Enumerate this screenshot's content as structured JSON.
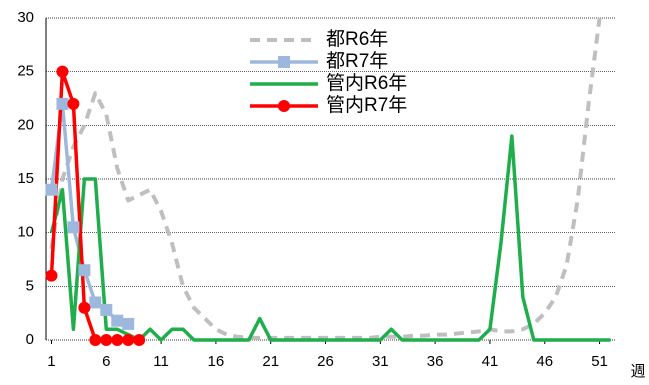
{
  "chart_data": {
    "type": "line",
    "x_label": "週",
    "x": [
      1,
      2,
      3,
      4,
      5,
      6,
      7,
      8,
      9,
      10,
      11,
      12,
      13,
      14,
      15,
      16,
      17,
      18,
      19,
      20,
      21,
      22,
      23,
      24,
      25,
      26,
      27,
      28,
      29,
      30,
      31,
      32,
      33,
      34,
      35,
      36,
      37,
      38,
      39,
      40,
      41,
      42,
      43,
      44,
      45,
      46,
      47,
      48,
      49,
      50,
      51,
      52
    ],
    "xlim": [
      0.5,
      52.5
    ],
    "xticks": [
      1,
      6,
      11,
      16,
      21,
      26,
      31,
      36,
      41,
      46,
      51
    ],
    "ylim": [
      0,
      30
    ],
    "yticks": [
      0,
      5,
      10,
      15,
      20,
      25,
      30
    ],
    "grid": true,
    "legend": "top",
    "series": [
      {
        "name": "都R6年",
        "color": "#bfbfbf",
        "style": "dashed",
        "marker": "none",
        "values": [
          8.5,
          15,
          18,
          20,
          23,
          21,
          16,
          13,
          13.5,
          14,
          12,
          9,
          5,
          3,
          2,
          1,
          0.5,
          0.3,
          0.2,
          0.2,
          0.2,
          0.2,
          0.2,
          0.2,
          0.2,
          0.2,
          0.2,
          0.2,
          0.2,
          0.2,
          0.3,
          0.3,
          0.3,
          0.4,
          0.4,
          0.5,
          0.5,
          0.6,
          0.7,
          0.8,
          1,
          0.8,
          0.8,
          1,
          1.5,
          2.5,
          4,
          7,
          13,
          22,
          30,
          null
        ]
      },
      {
        "name": "都R7年",
        "color": "#9db8dc",
        "style": "solid",
        "marker": "square",
        "values": [
          14,
          22,
          10.5,
          6.5,
          3.5,
          2.8,
          1.8,
          1.5,
          null,
          null,
          null,
          null,
          null,
          null,
          null,
          null,
          null,
          null,
          null,
          null,
          null,
          null,
          null,
          null,
          null,
          null,
          null,
          null,
          null,
          null,
          null,
          null,
          null,
          null,
          null,
          null,
          null,
          null,
          null,
          null,
          null,
          null,
          null,
          null,
          null,
          null,
          null,
          null,
          null,
          null,
          null,
          null
        ]
      },
      {
        "name": "管内R6年",
        "color": "#1fae4b",
        "style": "solid",
        "marker": "none",
        "values": [
          10,
          14,
          1,
          15,
          15,
          1,
          1,
          0.5,
          0,
          1,
          0,
          1,
          1,
          0,
          0,
          0,
          0,
          0,
          0,
          2,
          0,
          0,
          0,
          0,
          0,
          0,
          0,
          0,
          0,
          0,
          0,
          1,
          0,
          0,
          0,
          0,
          0,
          0,
          0,
          0,
          1,
          9,
          19,
          4,
          0,
          0,
          0,
          0,
          0,
          0,
          0,
          0
        ]
      },
      {
        "name": "管内R7年",
        "color": "#ff0000",
        "style": "solid",
        "marker": "circle",
        "values": [
          6,
          25,
          22,
          3,
          0,
          0,
          0,
          0,
          0,
          null,
          null,
          null,
          null,
          null,
          null,
          null,
          null,
          null,
          null,
          null,
          null,
          null,
          null,
          null,
          null,
          null,
          null,
          null,
          null,
          null,
          null,
          null,
          null,
          null,
          null,
          null,
          null,
          null,
          null,
          null,
          null,
          null,
          null,
          null,
          null,
          null,
          null,
          null,
          null,
          null,
          null,
          null
        ]
      }
    ]
  }
}
